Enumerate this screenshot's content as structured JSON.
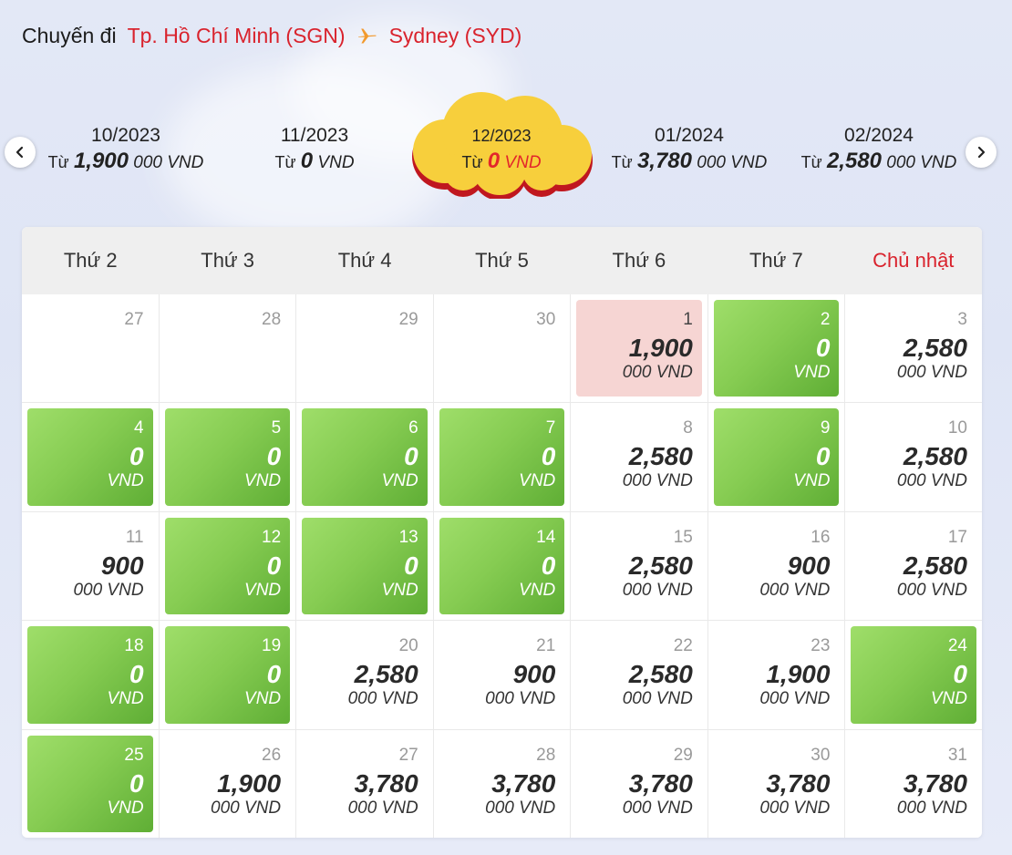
{
  "header": {
    "label": "Chuyến đi",
    "origin": "Tp. Hồ Chí Minh (SGN)",
    "destination": "Sydney (SYD)"
  },
  "months": [
    {
      "name": "10/2023",
      "from": "Từ",
      "amount": "1,900",
      "unit": "000 VND"
    },
    {
      "name": "11/2023",
      "from": "Từ",
      "amount": "0",
      "unit": "VND"
    },
    {
      "name": "12/2023",
      "from": "Từ",
      "amount": "0",
      "unit": "VND",
      "active": true
    },
    {
      "name": "01/2024",
      "from": "Từ",
      "amount": "3,780",
      "unit": "000 VND"
    },
    {
      "name": "02/2024",
      "from": "Từ",
      "amount": "2,580",
      "unit": "000 VND"
    }
  ],
  "weekdays": [
    "Thứ 2",
    "Thứ 3",
    "Thứ 4",
    "Thứ 5",
    "Thứ 6",
    "Thứ 7",
    "Chủ nhật"
  ],
  "days": [
    {
      "day": "27",
      "price": "",
      "unit": "",
      "style": "empty"
    },
    {
      "day": "28",
      "price": "",
      "unit": "",
      "style": "empty"
    },
    {
      "day": "29",
      "price": "",
      "unit": "",
      "style": "empty"
    },
    {
      "day": "30",
      "price": "",
      "unit": "",
      "style": "empty"
    },
    {
      "day": "1",
      "price": "1,900",
      "unit": "000 VND",
      "style": "pink"
    },
    {
      "day": "2",
      "price": "0",
      "unit": "VND",
      "style": "green"
    },
    {
      "day": "3",
      "price": "2,580",
      "unit": "000 VND",
      "style": "normal"
    },
    {
      "day": "4",
      "price": "0",
      "unit": "VND",
      "style": "green"
    },
    {
      "day": "5",
      "price": "0",
      "unit": "VND",
      "style": "green"
    },
    {
      "day": "6",
      "price": "0",
      "unit": "VND",
      "style": "green"
    },
    {
      "day": "7",
      "price": "0",
      "unit": "VND",
      "style": "green"
    },
    {
      "day": "8",
      "price": "2,580",
      "unit": "000 VND",
      "style": "normal"
    },
    {
      "day": "9",
      "price": "0",
      "unit": "VND",
      "style": "green"
    },
    {
      "day": "10",
      "price": "2,580",
      "unit": "000 VND",
      "style": "normal"
    },
    {
      "day": "11",
      "price": "900",
      "unit": "000 VND",
      "style": "normal"
    },
    {
      "day": "12",
      "price": "0",
      "unit": "VND",
      "style": "green"
    },
    {
      "day": "13",
      "price": "0",
      "unit": "VND",
      "style": "green"
    },
    {
      "day": "14",
      "price": "0",
      "unit": "VND",
      "style": "green"
    },
    {
      "day": "15",
      "price": "2,580",
      "unit": "000 VND",
      "style": "normal"
    },
    {
      "day": "16",
      "price": "900",
      "unit": "000 VND",
      "style": "normal"
    },
    {
      "day": "17",
      "price": "2,580",
      "unit": "000 VND",
      "style": "normal"
    },
    {
      "day": "18",
      "price": "0",
      "unit": "VND",
      "style": "green"
    },
    {
      "day": "19",
      "price": "0",
      "unit": "VND",
      "style": "green"
    },
    {
      "day": "20",
      "price": "2,580",
      "unit": "000 VND",
      "style": "normal"
    },
    {
      "day": "21",
      "price": "900",
      "unit": "000 VND",
      "style": "normal"
    },
    {
      "day": "22",
      "price": "2,580",
      "unit": "000 VND",
      "style": "normal"
    },
    {
      "day": "23",
      "price": "1,900",
      "unit": "000 VND",
      "style": "normal"
    },
    {
      "day": "24",
      "price": "0",
      "unit": "VND",
      "style": "green"
    },
    {
      "day": "25",
      "price": "0",
      "unit": "VND",
      "style": "green"
    },
    {
      "day": "26",
      "price": "1,900",
      "unit": "000 VND",
      "style": "normal"
    },
    {
      "day": "27",
      "price": "3,780",
      "unit": "000 VND",
      "style": "normal"
    },
    {
      "day": "28",
      "price": "3,780",
      "unit": "000 VND",
      "style": "normal"
    },
    {
      "day": "29",
      "price": "3,780",
      "unit": "000 VND",
      "style": "normal"
    },
    {
      "day": "30",
      "price": "3,780",
      "unit": "000 VND",
      "style": "normal"
    },
    {
      "day": "31",
      "price": "3,780",
      "unit": "000 VND",
      "style": "normal"
    }
  ],
  "colors": {
    "accent_red": "#d9232d",
    "green": "#86cc52",
    "pink": "#f6d5d3",
    "cloud_yellow": "#f7cf3c"
  },
  "icons": [
    "airplane-icon",
    "chevron-left-icon",
    "chevron-right-icon",
    "cloud-icon"
  ]
}
